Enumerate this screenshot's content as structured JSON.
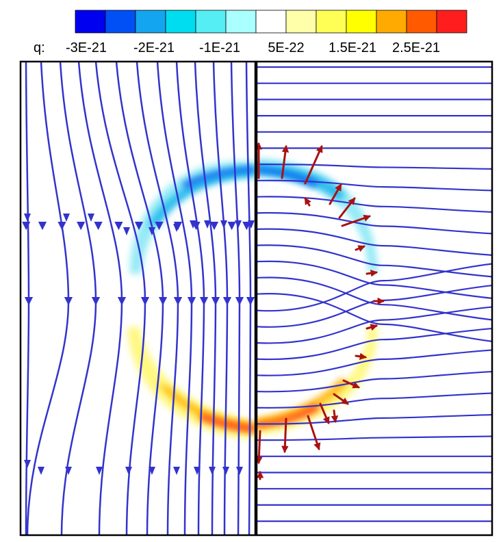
{
  "colorbar": {
    "variable_label": "q:",
    "colors": [
      "#0000f0",
      "#0050f5",
      "#14a5f0",
      "#00dcf0",
      "#55eef5",
      "#aaffff",
      "#ffffff",
      "#ffffaa",
      "#ffff55",
      "#ffff00",
      "#ffaa00",
      "#ff5a00",
      "#ff1e1e"
    ],
    "tick_labels": [
      "-3E-21",
      "-2E-21",
      "-1E-21",
      "5E-22",
      "1.5E-21",
      "2.5E-21"
    ]
  },
  "panels": {
    "left": "streamlines with charge-density contour",
    "right": "streamlines with force vectors"
  },
  "styles": {
    "streamline_color": "#3333cc",
    "vector_color": "#aa1111",
    "frame_color": "#000000"
  }
}
